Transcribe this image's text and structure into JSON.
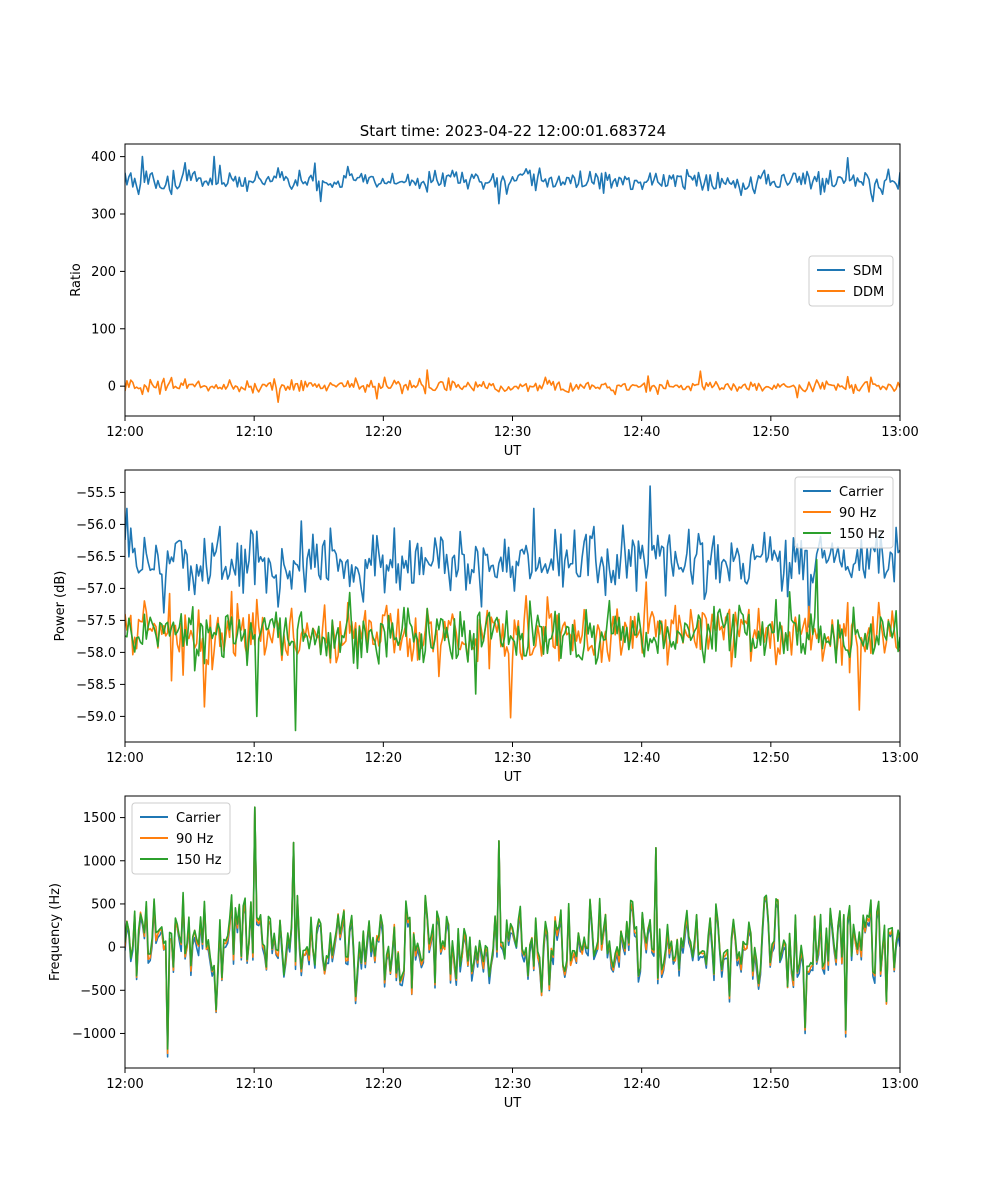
{
  "figure": {
    "title": "Start time: 2023-04-22 12:00:01.683724"
  },
  "chart_data": [
    {
      "type": "line",
      "xlabel": "UT",
      "ylabel": "Ratio",
      "xlim": [
        "12:00",
        "13:00"
      ],
      "xticks": [
        "12:00",
        "12:10",
        "12:20",
        "12:30",
        "12:40",
        "12:50",
        "13:00"
      ],
      "ylim": [
        -52,
        422
      ],
      "yticks": [
        0,
        100,
        200,
        300,
        400
      ],
      "legend_position": "center-right",
      "grid": false,
      "series": [
        {
          "name": "SDM",
          "color": "#1f77b4",
          "mean": 358,
          "spread": 14,
          "key_points": [
            [
              1.3,
              400
            ],
            [
              6.9,
              400
            ],
            [
              15.1,
              322
            ],
            [
              29.0,
              318
            ],
            [
              55.9,
              398
            ],
            [
              57.9,
              322
            ]
          ]
        },
        {
          "name": "DDM",
          "color": "#ff7f0e",
          "mean": 0,
          "spread": 8,
          "key_points": [
            [
              11.9,
              -28
            ],
            [
              19.5,
              -22
            ],
            [
              23.4,
              28
            ],
            [
              44.6,
              26
            ],
            [
              52.1,
              -20
            ]
          ]
        }
      ]
    },
    {
      "type": "line",
      "xlabel": "UT",
      "ylabel": "Power (dB)",
      "xlim": [
        "12:00",
        "13:00"
      ],
      "xticks": [
        "12:00",
        "12:10",
        "12:20",
        "12:30",
        "12:40",
        "12:50",
        "13:00"
      ],
      "ylim": [
        -59.4,
        -55.15
      ],
      "yticks": [
        "−59.0",
        "−58.5",
        "−58.0",
        "−57.5",
        "−57.0",
        "−56.5",
        "−56.0",
        "−55.5"
      ],
      "legend_position": "top-right",
      "grid": false,
      "series": [
        {
          "name": "Carrier",
          "color": "#1f77b4",
          "mean": -56.6,
          "spread": 0.35,
          "key_points": [
            [
              0.2,
              -55.75
            ],
            [
              31.6,
              -55.75
            ],
            [
              40.6,
              -55.4
            ],
            [
              52.9,
              -57.6
            ]
          ]
        },
        {
          "name": "90 Hz",
          "color": "#ff7f0e",
          "mean": -57.72,
          "spread": 0.33,
          "key_points": [
            [
              6.1,
              -58.85
            ],
            [
              29.8,
              -59.02
            ],
            [
              56.8,
              -58.9
            ],
            [
              40.3,
              -56.9
            ]
          ]
        },
        {
          "name": "150 Hz",
          "color": "#2ca02c",
          "mean": -57.72,
          "spread": 0.3,
          "key_points": [
            [
              10.2,
              -59.0
            ],
            [
              13.2,
              -59.22
            ],
            [
              27.2,
              -58.65
            ],
            [
              53.5,
              -56.55
            ]
          ]
        }
      ]
    },
    {
      "type": "line",
      "xlabel": "UT",
      "ylabel": "Frequency (Hz)",
      "xlim": [
        "12:00",
        "13:00"
      ],
      "xticks": [
        "12:00",
        "12:10",
        "12:20",
        "12:30",
        "12:40",
        "12:50",
        "13:00"
      ],
      "ylim": [
        -1400,
        1750
      ],
      "yticks": [
        "−1000",
        "−500",
        "0",
        "500",
        "1000",
        "1500"
      ],
      "legend_position": "top-left",
      "grid": false,
      "series": [
        {
          "name": "Carrier",
          "color": "#1f77b4",
          "mean": -20,
          "spread": 380,
          "offset": -70,
          "key_points": [
            [
              3.3,
              -1270
            ],
            [
              10.1,
              1620
            ],
            [
              13.1,
              1210
            ],
            [
              29.0,
              1230
            ],
            [
              41.1,
              1150
            ],
            [
              52.6,
              -1000
            ],
            [
              55.8,
              -1040
            ]
          ]
        },
        {
          "name": "90 Hz",
          "color": "#ff7f0e",
          "mean": 0,
          "spread": 380,
          "offset": -30,
          "key_points": [
            [
              3.3,
              -1230
            ],
            [
              10.1,
              1620
            ],
            [
              13.1,
              1210
            ],
            [
              29.0,
              1230
            ],
            [
              41.1,
              1150
            ],
            [
              52.6,
              -960
            ],
            [
              55.8,
              -1000
            ]
          ]
        },
        {
          "name": "150 Hz",
          "color": "#2ca02c",
          "mean": 20,
          "spread": 380,
          "offset": 0,
          "key_points": [
            [
              3.3,
              -1180
            ],
            [
              10.1,
              1620
            ],
            [
              13.1,
              1210
            ],
            [
              29.0,
              1230
            ],
            [
              41.1,
              1150
            ],
            [
              52.6,
              -930
            ],
            [
              55.8,
              -960
            ]
          ]
        }
      ]
    }
  ]
}
